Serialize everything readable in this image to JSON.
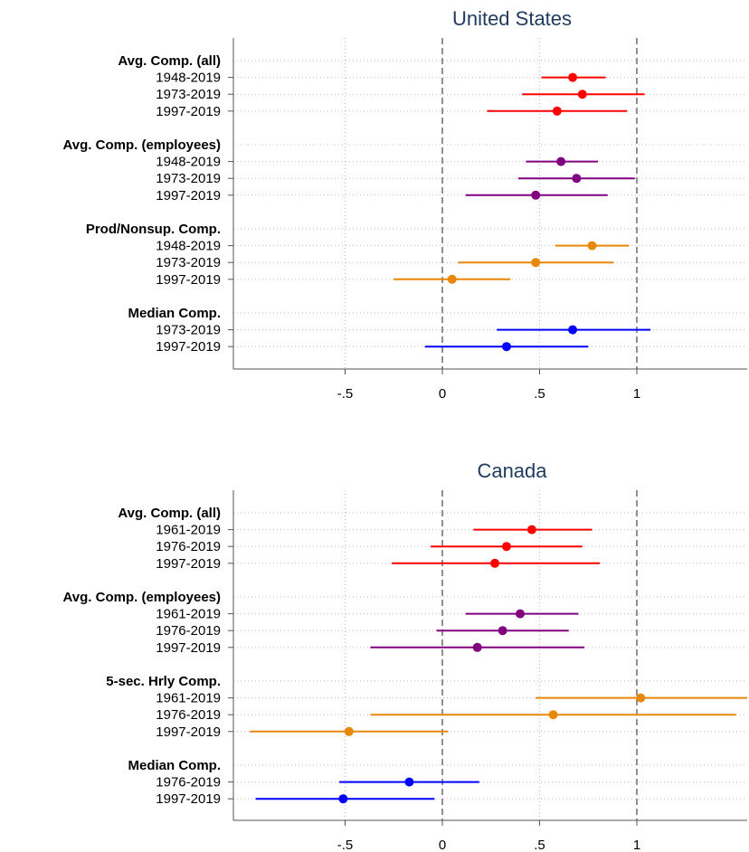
{
  "chart_data": [
    {
      "type": "scatter",
      "title": "United States",
      "xlim": [
        -1.0,
        1.58
      ],
      "xticks": [
        "-.5",
        "0",
        ".5",
        "1"
      ],
      "xtick_values": [
        -0.5,
        0,
        0.5,
        1
      ],
      "reference_lines": [
        0,
        1
      ],
      "groups": [
        {
          "name": "Avg. Comp. (all)",
          "color": "#ff0000",
          "items": [
            {
              "label": "1948-2019",
              "estimate": 0.67,
              "ci": [
                0.51,
                0.84
              ]
            },
            {
              "label": "1973-2019",
              "estimate": 0.72,
              "ci": [
                0.41,
                1.04
              ]
            },
            {
              "label": "1997-2019",
              "estimate": 0.59,
              "ci": [
                0.23,
                0.95
              ]
            }
          ]
        },
        {
          "name": "Avg. Comp. (employees)",
          "color": "#800080",
          "items": [
            {
              "label": "1948-2019",
              "estimate": 0.61,
              "ci": [
                0.43,
                0.8
              ]
            },
            {
              "label": "1973-2019",
              "estimate": 0.69,
              "ci": [
                0.39,
                0.99
              ]
            },
            {
              "label": "1997-2019",
              "estimate": 0.48,
              "ci": [
                0.12,
                0.85
              ]
            }
          ]
        },
        {
          "name": "Prod/Nonsup. Comp.",
          "color": "#e8870a",
          "items": [
            {
              "label": "1948-2019",
              "estimate": 0.77,
              "ci": [
                0.58,
                0.96
              ]
            },
            {
              "label": "1973-2019",
              "estimate": 0.48,
              "ci": [
                0.08,
                0.88
              ]
            },
            {
              "label": "1997-2019",
              "estimate": 0.05,
              "ci": [
                -0.25,
                0.35
              ]
            }
          ]
        },
        {
          "name": "Median Comp.",
          "color": "#0000ff",
          "items": [
            {
              "label": "1973-2019",
              "estimate": 0.67,
              "ci": [
                0.28,
                1.07
              ]
            },
            {
              "label": "1997-2019",
              "estimate": 0.33,
              "ci": [
                -0.09,
                0.75
              ]
            }
          ]
        }
      ]
    },
    {
      "type": "scatter",
      "title": "Canada",
      "xlim": [
        -1.0,
        1.58
      ],
      "xticks": [
        "-.5",
        "0",
        ".5",
        "1"
      ],
      "xtick_values": [
        -0.5,
        0,
        0.5,
        1
      ],
      "reference_lines": [
        0,
        1
      ],
      "groups": [
        {
          "name": "Avg. Comp. (all)",
          "color": "#ff0000",
          "items": [
            {
              "label": "1961-2019",
              "estimate": 0.46,
              "ci": [
                0.16,
                0.77
              ]
            },
            {
              "label": "1976-2019",
              "estimate": 0.33,
              "ci": [
                -0.06,
                0.72
              ]
            },
            {
              "label": "1997-2019",
              "estimate": 0.27,
              "ci": [
                -0.26,
                0.81
              ]
            }
          ]
        },
        {
          "name": "Avg. Comp. (employees)",
          "color": "#800080",
          "items": [
            {
              "label": "1961-2019",
              "estimate": 0.4,
              "ci": [
                0.12,
                0.7
              ]
            },
            {
              "label": "1976-2019",
              "estimate": 0.31,
              "ci": [
                -0.03,
                0.65
              ]
            },
            {
              "label": "1997-2019",
              "estimate": 0.18,
              "ci": [
                -0.37,
                0.73
              ]
            }
          ]
        },
        {
          "name": "5-sec. Hrly Comp.",
          "color": "#e8870a",
          "items": [
            {
              "label": "1961-2019",
              "estimate": 1.02,
              "ci": [
                0.48,
                1.58
              ]
            },
            {
              "label": "1976-2019",
              "estimate": 0.57,
              "ci": [
                -0.37,
                1.51
              ]
            },
            {
              "label": "1997-2019",
              "estimate": -0.48,
              "ci": [
                -0.99,
                0.03
              ]
            }
          ]
        },
        {
          "name": "Median Comp.",
          "color": "#0000ff",
          "items": [
            {
              "label": "1976-2019",
              "estimate": -0.17,
              "ci": [
                -0.53,
                0.19
              ]
            },
            {
              "label": "1997-2019",
              "estimate": -0.51,
              "ci": [
                -0.96,
                -0.04
              ]
            }
          ]
        }
      ]
    }
  ]
}
